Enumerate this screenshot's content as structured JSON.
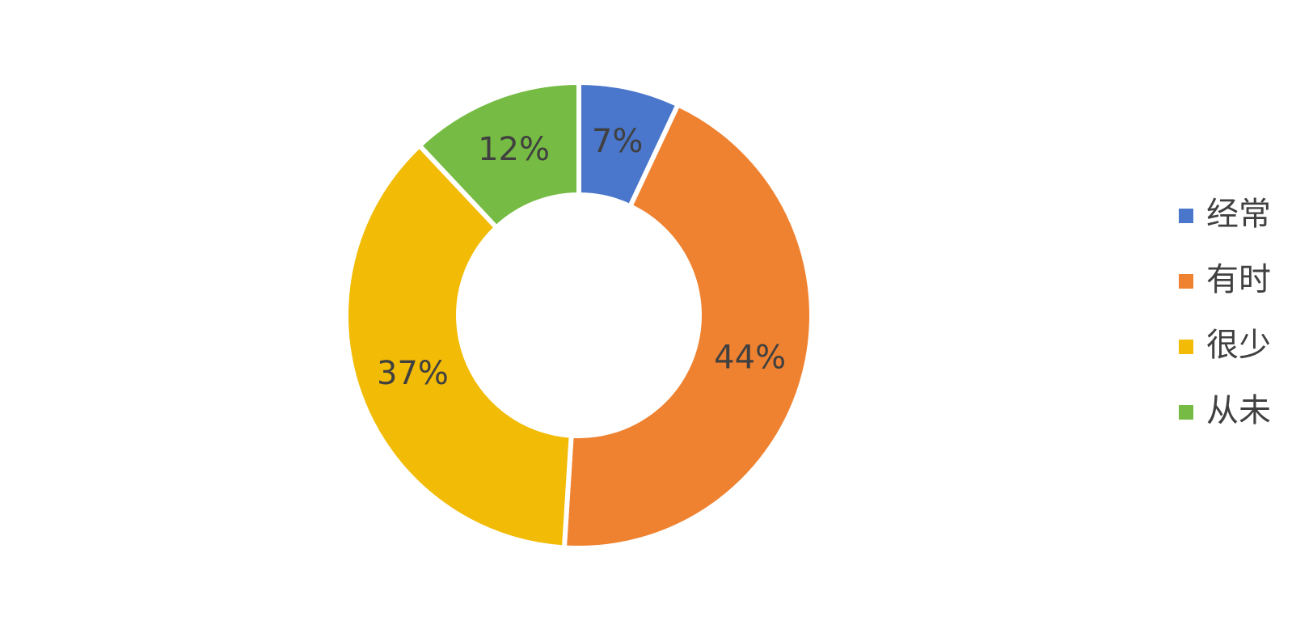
{
  "chart_data": {
    "type": "donut",
    "categories": [
      "经常",
      "有时",
      "很少",
      "从未"
    ],
    "values": [
      7,
      44,
      37,
      12
    ],
    "value_labels": [
      "7%",
      "44%",
      "37%",
      "12%"
    ],
    "colors": [
      "#4a76cb",
      "#ef8230",
      "#f2bb05",
      "#76bc44"
    ],
    "legend": "right"
  }
}
